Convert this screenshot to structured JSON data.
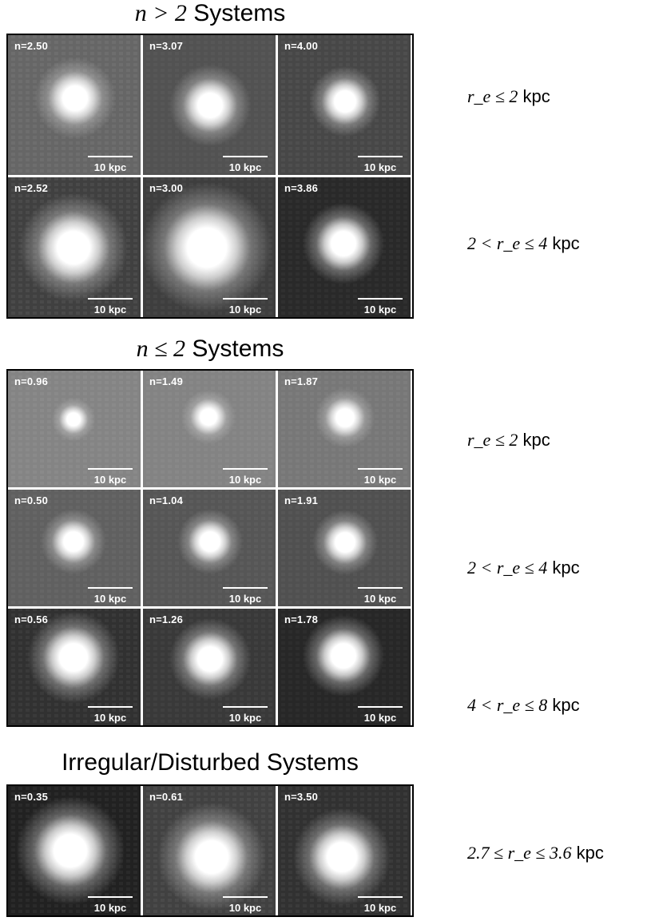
{
  "sections": [
    {
      "title_math": "n > 2",
      "title_text": "Systems",
      "rows": [
        {
          "range_math": "r_e ≤ 2",
          "unit": "kpc",
          "cells": [
            {
              "n": "n=2.50"
            },
            {
              "n": "n=3.07"
            },
            {
              "n": "n=4.00"
            }
          ]
        },
        {
          "range_math": "2 < r_e ≤ 4",
          "unit": "kpc",
          "cells": [
            {
              "n": "n=2.52"
            },
            {
              "n": "n=3.00"
            },
            {
              "n": "n=3.86"
            }
          ]
        }
      ]
    },
    {
      "title_math": "n ≤ 2",
      "title_text": "Systems",
      "rows": [
        {
          "range_math": "r_e ≤ 2",
          "unit": "kpc",
          "cells": [
            {
              "n": "n=0.96"
            },
            {
              "n": "n=1.49"
            },
            {
              "n": "n=1.87"
            }
          ]
        },
        {
          "range_math": "2 < r_e ≤ 4",
          "unit": "kpc",
          "cells": [
            {
              "n": "n=0.50"
            },
            {
              "n": "n=1.04"
            },
            {
              "n": "n=1.91"
            }
          ]
        },
        {
          "range_math": "4 < r_e ≤ 8",
          "unit": "kpc",
          "cells": [
            {
              "n": "n=0.56"
            },
            {
              "n": "n=1.26"
            },
            {
              "n": "n=1.78"
            }
          ]
        }
      ]
    },
    {
      "title_text": "Irregular/Disturbed Systems",
      "rows": [
        {
          "range_math": "2.7 ≤ r_e ≤ 3.6",
          "unit": "kpc",
          "cells": [
            {
              "n": "n=0.35"
            },
            {
              "n": "n=0.61"
            },
            {
              "n": "n=3.50"
            }
          ]
        }
      ]
    }
  ],
  "scale_bar_label": "10 kpc"
}
